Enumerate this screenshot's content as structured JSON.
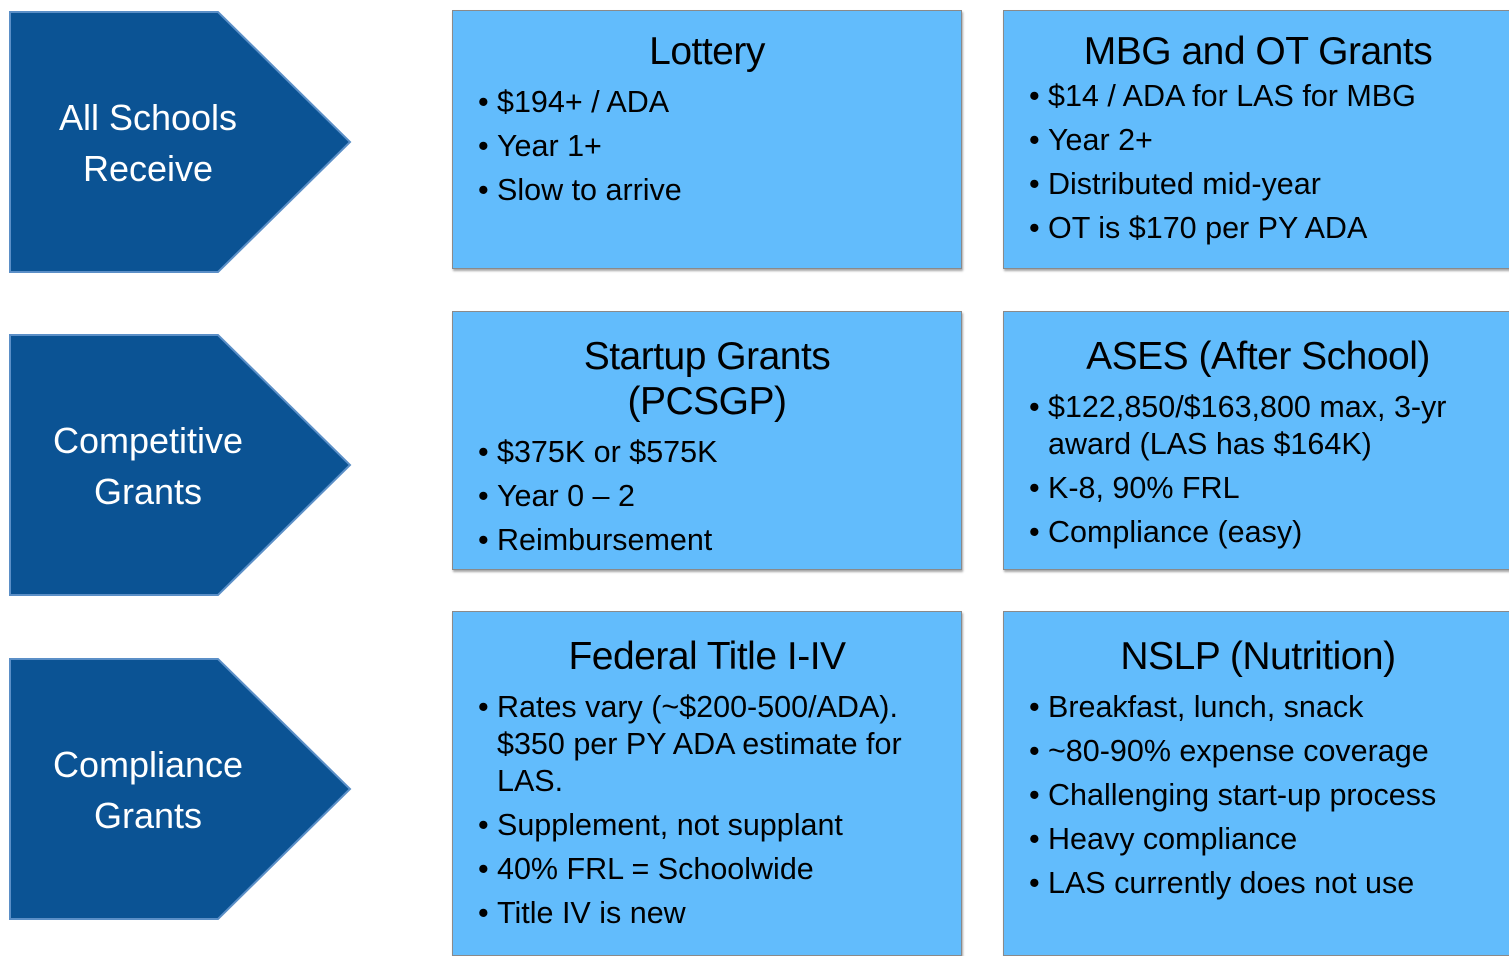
{
  "rows": [
    {
      "label": [
        "All Schools",
        "Receive"
      ],
      "boxes": [
        {
          "title": "Lottery",
          "bullets": [
            "$194+ / ADA",
            "Year 1+",
            "Slow to arrive"
          ]
        },
        {
          "title": "MBG and OT Grants",
          "bullets": [
            "$14 / ADA for LAS for MBG",
            "Year 2+",
            "Distributed mid-year",
            "OT is $170 per PY ADA"
          ]
        }
      ]
    },
    {
      "label": [
        "Competitive",
        "Grants"
      ],
      "boxes": [
        {
          "title": "Startup Grants (PCSGP)",
          "bullets": [
            "$375K or $575K",
            "Year 0 – 2",
            "Reimbursement"
          ]
        },
        {
          "title": "ASES (After School)",
          "bullets": [
            "$122,850/$163,800 max, 3-yr award (LAS has $164K)",
            "K-8, 90% FRL",
            "Compliance (easy)"
          ]
        }
      ]
    },
    {
      "label": [
        "Compliance",
        "Grants"
      ],
      "boxes": [
        {
          "title": "Federal Title I-IV",
          "bullets": [
            "Rates vary (~$200-500/ADA). $350 per PY ADA estimate for LAS.",
            "Supplement, not supplant",
            "40% FRL = Schoolwide",
            "Title IV is new"
          ]
        },
        {
          "title": "NSLP (Nutrition)",
          "bullets": [
            "Breakfast, lunch, snack",
            "~80-90% expense coverage",
            "Challenging start-up process",
            "Heavy compliance",
            "LAS currently does not use"
          ]
        }
      ]
    }
  ]
}
